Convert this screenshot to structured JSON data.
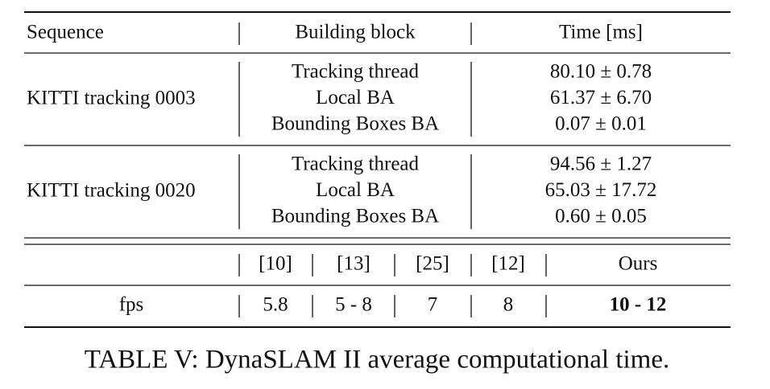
{
  "header": [
    "Sequence",
    "Building block",
    "Time [ms]"
  ],
  "groups": [
    {
      "sequence": "KITTI tracking 0003",
      "rows": [
        {
          "block": "Tracking thread",
          "time": "80.10 ± 0.78"
        },
        {
          "block": "Local BA",
          "time": "61.37 ± 6.70"
        },
        {
          "block": "Bounding Boxes BA",
          "time": "0.07 ± 0.01"
        }
      ]
    },
    {
      "sequence": "KITTI tracking 0020",
      "rows": [
        {
          "block": "Tracking thread",
          "time": "94.56 ± 1.27"
        },
        {
          "block": "Local BA",
          "time": "65.03 ± 17.72"
        },
        {
          "block": "Bounding Boxes BA",
          "time": "0.60 ± 0.05"
        }
      ]
    }
  ],
  "comparison": {
    "methods": [
      "[10]",
      "[13]",
      "[25]",
      "[12]",
      "Ours"
    ],
    "label": "fps",
    "values": [
      "5.8",
      "5 - 8",
      "7",
      "8",
      "10 - 12"
    ]
  },
  "caption": "TABLE V: DynaSLAM II average computational time."
}
